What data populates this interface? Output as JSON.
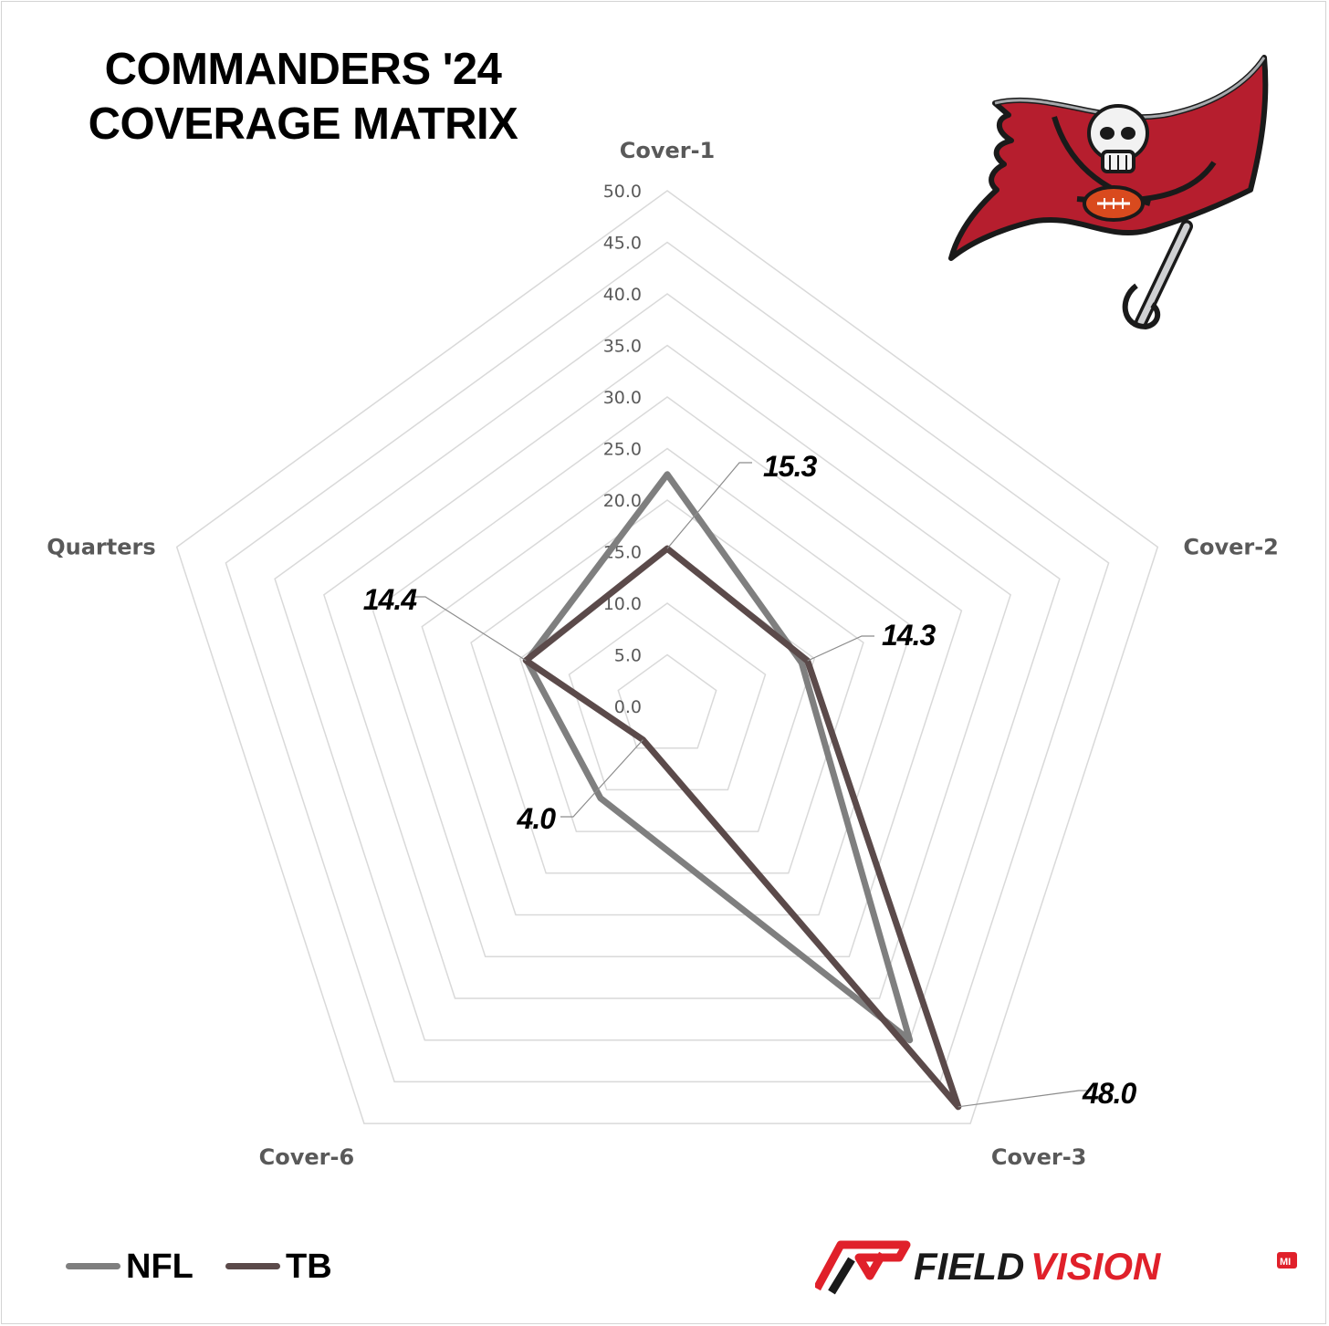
{
  "title": {
    "line1": "COMMANDERS '24",
    "line2": "COVERAGE MATRIX"
  },
  "chart_data": {
    "type": "radar",
    "title": "COMMANDERS '24 COVERAGE MATRIX",
    "axes": [
      "Cover-1",
      "Cover-2",
      "Cover-3",
      "Cover-6",
      "Quarters"
    ],
    "rlim": [
      0,
      50
    ],
    "ticks": [
      "0.0",
      "5.0",
      "10.0",
      "15.0",
      "20.0",
      "25.0",
      "30.0",
      "35.0",
      "40.0",
      "45.0",
      "50.0"
    ],
    "grid": true,
    "series": [
      {
        "name": "NFL",
        "values": [
          22.5,
          13.7,
          40.0,
          11.0,
          14.3
        ],
        "color": "#7f7f7f"
      },
      {
        "name": "TB",
        "values": [
          15.3,
          14.3,
          48.0,
          4.0,
          14.4
        ],
        "color": "#5b4a4a"
      }
    ],
    "data_labels": [
      "15.3",
      "14.3",
      "48.0",
      "4.0",
      "14.4"
    ],
    "legend": "bottom-left"
  },
  "legend": {
    "nfl_label": "NFL",
    "tb_label": "TB"
  },
  "branding": {
    "word_a": "FIELD",
    "word_b": "VISION",
    "badge": "MI"
  },
  "colors": {
    "nfl": "#7f7f7f",
    "tb": "#5b4a4a",
    "grid": "#d9d9d9",
    "brand_red": "#e0202a",
    "flag_red": "#b61e2e"
  }
}
